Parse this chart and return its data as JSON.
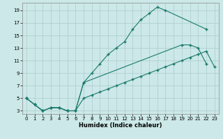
{
  "xlabel": "Humidex (Indice chaleur)",
  "bg_color": "#cce8e8",
  "grid_color": "#aacccc",
  "line_color": "#1a7a6a",
  "xlim": [
    -0.5,
    23.5
  ],
  "ylim": [
    2.5,
    20.2
  ],
  "xticks": [
    0,
    1,
    2,
    3,
    4,
    5,
    6,
    7,
    8,
    9,
    10,
    11,
    12,
    13,
    14,
    15,
    16,
    17,
    18,
    19,
    20,
    21,
    22,
    23
  ],
  "yticks": [
    3,
    5,
    7,
    9,
    11,
    13,
    15,
    17,
    19
  ],
  "line1_x": [
    0,
    1,
    2,
    3,
    4,
    5,
    6,
    7,
    8,
    9,
    10,
    11,
    12,
    13,
    14,
    15,
    16,
    17,
    22
  ],
  "line1_y": [
    5,
    4,
    3,
    3.5,
    3.5,
    3,
    3,
    7.5,
    9,
    10.5,
    12,
    13,
    14,
    16,
    17.5,
    18.5,
    19.5,
    19,
    16
  ],
  "line2_x": [
    0,
    1,
    2,
    3,
    4,
    5,
    6,
    7,
    19,
    20,
    21,
    22
  ],
  "line2_y": [
    5,
    4,
    3,
    3.5,
    3.5,
    3,
    3,
    7.5,
    13.5,
    13.5,
    13,
    10.5
  ],
  "line3_x": [
    0,
    1,
    2,
    3,
    4,
    5,
    6,
    7,
    8,
    9,
    10,
    11,
    12,
    13,
    14,
    15,
    16,
    17,
    18,
    19,
    20,
    21,
    22,
    23
  ],
  "line3_y": [
    5,
    4,
    3,
    3.5,
    3.5,
    3,
    3,
    5,
    5.5,
    6,
    6.5,
    7,
    7.5,
    8,
    8.5,
    9,
    9.5,
    10,
    10.5,
    11,
    11.5,
    12,
    12.5,
    10
  ]
}
